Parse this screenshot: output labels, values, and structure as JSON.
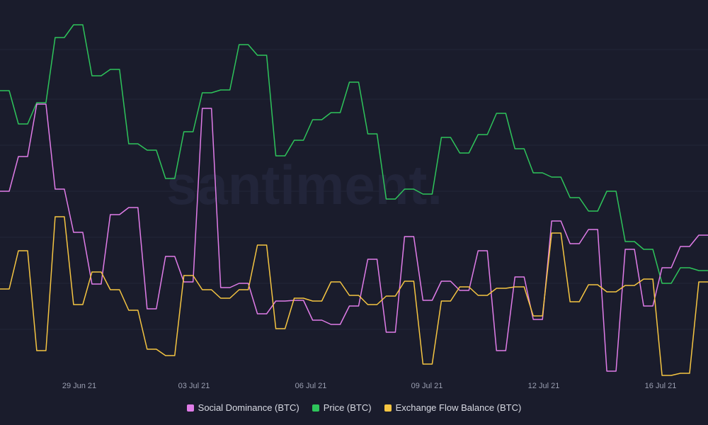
{
  "chart_data": {
    "type": "line",
    "x_tick_labels": [
      "29 Jun 21",
      "03 Jul 21",
      "06 Jul 21",
      "09 Jul 21",
      "12 Jul 21",
      "16 Jul 21"
    ],
    "watermark": "santiment.",
    "series": [
      {
        "name": "Price (BTC)",
        "color": "#2ec45b",
        "values": [
          128,
          128,
          175,
          175,
          145,
          145,
          53,
          53,
          35,
          35,
          107,
          107,
          98,
          98,
          203,
          203,
          212,
          212,
          252,
          252,
          186,
          186,
          131,
          131,
          127,
          127,
          63,
          63,
          78,
          78,
          220,
          220,
          198,
          198,
          169,
          169,
          159,
          159,
          116,
          116,
          189,
          189,
          281,
          281,
          267,
          267,
          274,
          274,
          194,
          194,
          216,
          216,
          190,
          190,
          160,
          160,
          210,
          210,
          244,
          244,
          250,
          250,
          279,
          279,
          298,
          298,
          270,
          270,
          341,
          341,
          352,
          352,
          400,
          400,
          378,
          378,
          382,
          382
        ]
      },
      {
        "name": "Social Dominance (BTC)",
        "color": "#e07ce8",
        "values": [
          270,
          270,
          221,
          221,
          147,
          147,
          267,
          267,
          328,
          328,
          401,
          401,
          303,
          303,
          293,
          293,
          436,
          436,
          362,
          362,
          398,
          398,
          153,
          153,
          406,
          406,
          400,
          400,
          443,
          443,
          425,
          425,
          424,
          424,
          452,
          452,
          458,
          458,
          432,
          432,
          366,
          366,
          469,
          469,
          334,
          334,
          424,
          424,
          397,
          397,
          410,
          410,
          354,
          354,
          495,
          495,
          391,
          391,
          451,
          451,
          312,
          312,
          344,
          344,
          324,
          324,
          524,
          524,
          352,
          352,
          432,
          432,
          378,
          378,
          348,
          348,
          332,
          332
        ]
      },
      {
        "name": "Exchange Flow Balance (BTC)",
        "color": "#f5c542",
        "values": [
          408,
          408,
          354,
          354,
          495,
          495,
          306,
          306,
          430,
          430,
          384,
          384,
          409,
          409,
          438,
          438,
          493,
          493,
          502,
          502,
          389,
          389,
          409,
          409,
          421,
          421,
          409,
          409,
          346,
          346,
          464,
          464,
          421,
          421,
          425,
          425,
          398,
          398,
          417,
          417,
          430,
          430,
          418,
          418,
          397,
          397,
          514,
          514,
          425,
          425,
          405,
          405,
          417,
          417,
          407,
          407,
          405,
          405,
          446,
          446,
          329,
          329,
          426,
          426,
          402,
          402,
          412,
          412,
          403,
          403,
          394,
          394,
          530,
          530,
          527,
          527,
          398,
          398
        ]
      }
    ]
  },
  "legend": {
    "items": [
      {
        "label": "Social Dominance (BTC)",
        "color": "#e07ce8"
      },
      {
        "label": "Price (BTC)",
        "color": "#2ec45b"
      },
      {
        "label": "Exchange Flow Balance (BTC)",
        "color": "#f5c542"
      }
    ]
  }
}
